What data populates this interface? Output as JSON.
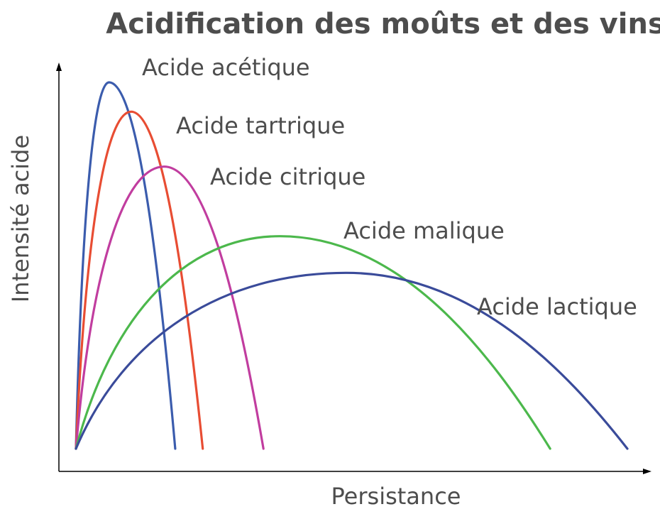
{
  "chart_data": {
    "type": "line",
    "title": "Acidification des moûts et des vins",
    "xlabel": "Persistance",
    "ylabel": "Intensité acide",
    "xlim": [
      0,
      100
    ],
    "ylim": [
      0,
      100
    ],
    "grid": false,
    "legend": "inline labels",
    "series": [
      {
        "name": "Acide acétique",
        "color": "#3b5cad",
        "x": [
          0,
          6,
          18
        ],
        "y": [
          0,
          100,
          0
        ]
      },
      {
        "name": "Acide tartrique",
        "color": "#e84d33",
        "x": [
          0,
          10,
          23
        ],
        "y": [
          0,
          92,
          0
        ]
      },
      {
        "name": "Acide citrique",
        "color": "#c13d9f",
        "x": [
          0,
          16,
          34
        ],
        "y": [
          0,
          77,
          0
        ]
      },
      {
        "name": "Acide malique",
        "color": "#4cb84c",
        "x": [
          0,
          37,
          86
        ],
        "y": [
          0,
          58,
          0
        ]
      },
      {
        "name": "Acide lactique",
        "color": "#3a4b9a",
        "x": [
          0,
          49,
          100
        ],
        "y": [
          0,
          48,
          0
        ]
      }
    ]
  }
}
